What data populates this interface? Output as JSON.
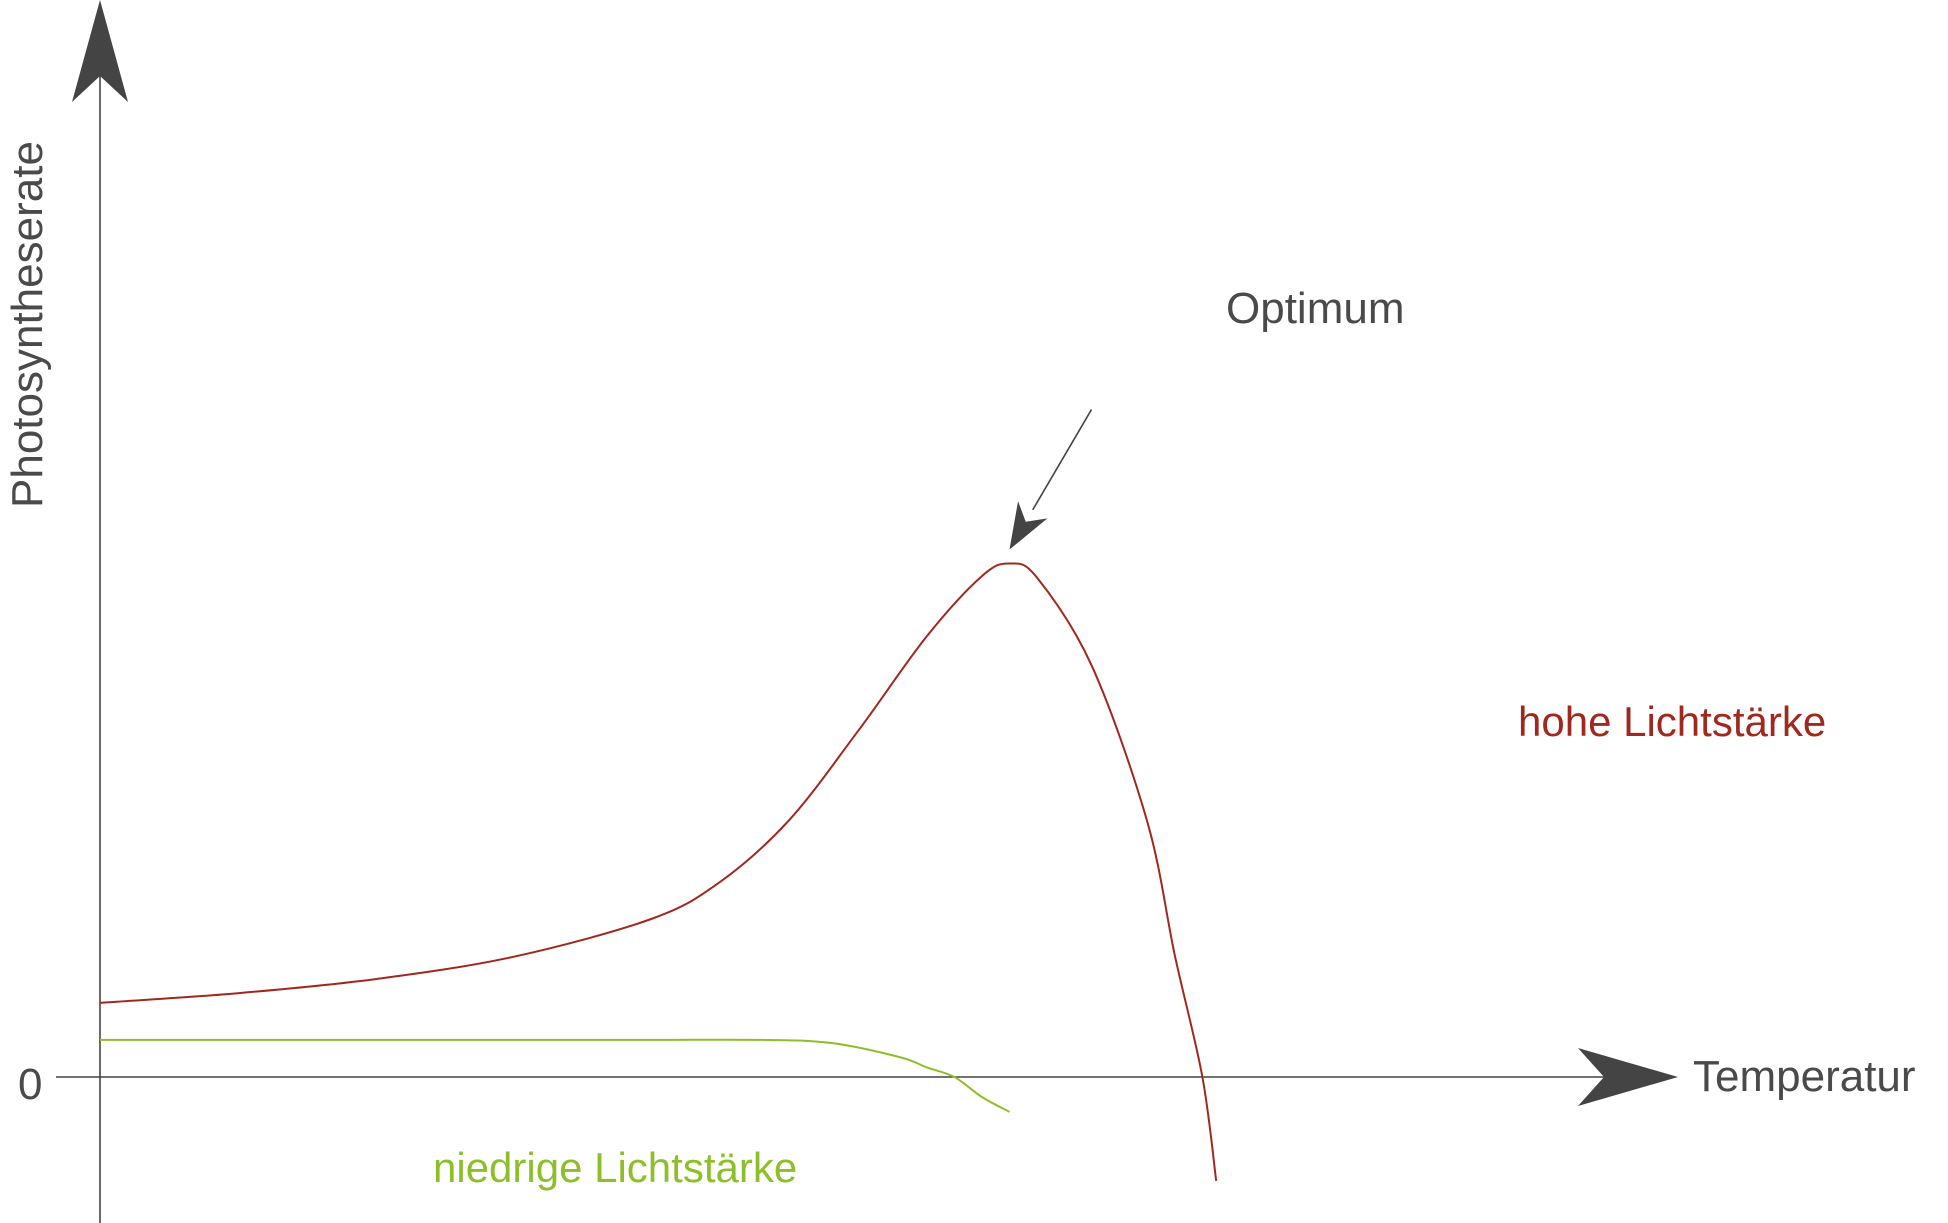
{
  "chart_data": {
    "type": "line",
    "title": "",
    "xlabel": "Temperatur",
    "ylabel": "Photosyntheserate",
    "y_ticks": [
      "0"
    ],
    "xlim": [
      0,
      100
    ],
    "ylim": [
      -20,
      100
    ],
    "grid": false,
    "series": [
      {
        "name": "hohe Lichtstärke",
        "color": "#a0281e",
        "points": [
          [
            0,
            10
          ],
          [
            10,
            11.3
          ],
          [
            20,
            13.2
          ],
          [
            30,
            16.2
          ],
          [
            40,
            21.3
          ],
          [
            45,
            26.3
          ],
          [
            50,
            34.6
          ],
          [
            55,
            46.6
          ],
          [
            60,
            59.4
          ],
          [
            64,
            67.5
          ],
          [
            66,
            69.2
          ],
          [
            68,
            67.3
          ],
          [
            72,
            55.3
          ],
          [
            76,
            34.4
          ],
          [
            78,
            16.4
          ],
          [
            80,
            0
          ],
          [
            81,
            -14
          ]
        ]
      },
      {
        "name": "niedrige Lichtstärke",
        "color": "#8cbf2a",
        "points": [
          [
            0,
            5
          ],
          [
            10,
            5
          ],
          [
            20,
            5
          ],
          [
            30,
            5
          ],
          [
            40,
            5
          ],
          [
            48,
            5
          ],
          [
            53,
            4.6
          ],
          [
            58,
            2.7
          ],
          [
            60,
            1.3
          ],
          [
            62,
            0
          ],
          [
            64,
            -2.7
          ],
          [
            66,
            -4.7
          ]
        ]
      }
    ],
    "annotations": [
      {
        "text": "Optimum",
        "target": [
          66,
          69.2
        ]
      }
    ]
  }
}
